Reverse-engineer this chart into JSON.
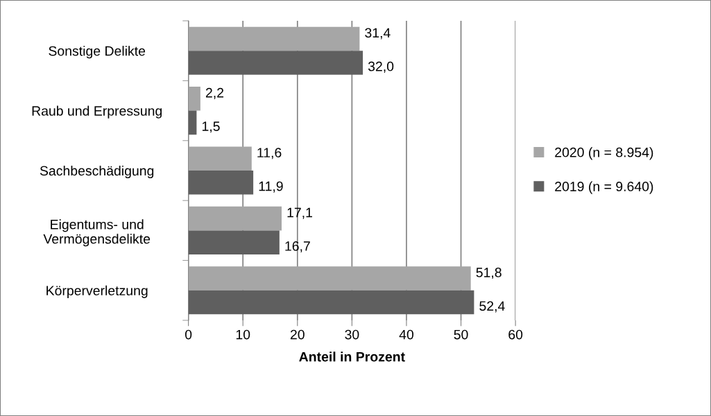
{
  "chart_data": {
    "type": "bar",
    "orientation": "horizontal",
    "xlabel": "Anteil in Prozent",
    "categories": [
      "Sonstige Delikte",
      "Raub und Erpressung",
      "Sachbeschädigung",
      "Eigentums- und\nVermögensdelikte",
      "Körperverletzung"
    ],
    "series": [
      {
        "name": "2020 (n = 8.954)",
        "color": "#a6a6a6",
        "values": [
          31.4,
          2.2,
          11.6,
          17.1,
          51.8
        ],
        "value_labels": [
          "31,4",
          "2,2",
          "11,6",
          "17,1",
          "51,8"
        ]
      },
      {
        "name": "2019 (n = 9.640)",
        "color": "#5f5f5f",
        "values": [
          32.0,
          1.5,
          11.9,
          16.7,
          52.4
        ],
        "value_labels": [
          "32,0",
          "1,5",
          "11,9",
          "16,7",
          "52,4"
        ]
      }
    ],
    "xlim": [
      0,
      60
    ],
    "xticks": [
      0,
      10,
      20,
      30,
      40,
      50,
      60
    ],
    "grid": "x",
    "legend": "right"
  }
}
